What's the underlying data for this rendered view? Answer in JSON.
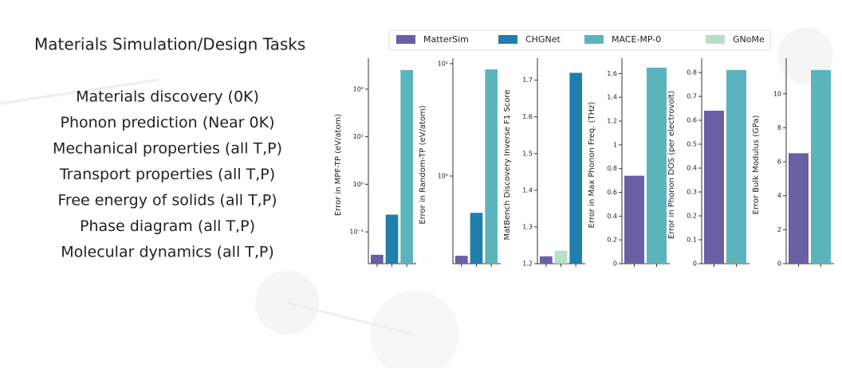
{
  "slide": {
    "title": "Materials Simulation/Design Tasks",
    "items": [
      "Materials discovery (0K)",
      "Phonon prediction (Near 0K)",
      "Mechanical properties (all T,P)",
      "Transport properties (all T,P)",
      "Free energy of solids (all T,P)",
      "Phase diagram (all T,P)",
      "Molecular dynamics (all T,P)"
    ]
  },
  "legend_loc": "upper center",
  "chart_data": [
    {
      "type": "bar",
      "ylabel": "Error in MPF-TP (eV/atom)",
      "log": true,
      "ylim": [
        0.0215,
        447
      ],
      "yticks": [
        {
          "value": 0.1,
          "label": "10⁻¹"
        },
        {
          "value": 1,
          "label": "10⁰"
        },
        {
          "value": 10,
          "label": "10¹"
        },
        {
          "value": 100,
          "label": "10²"
        }
      ],
      "series": [
        {
          "name": "MatterSim",
          "color": "#6a5fa3",
          "values": [
            0.033
          ]
        },
        {
          "name": "CHGNet",
          "color": "#1f7fab",
          "values": [
            0.23
          ]
        },
        {
          "name": "MACE-MP-0",
          "color": "#5bb4bb",
          "values": [
            251
          ]
        }
      ]
    },
    {
      "type": "bar",
      "ylabel": "Error in Random-TP (eV/atom)",
      "log": true,
      "ylim": [
        0.166,
        11.2
      ],
      "yticks": [
        {
          "value": 1,
          "label": "10⁰"
        },
        {
          "value": 10,
          "label": "10¹"
        }
      ],
      "series": [
        {
          "name": "MatterSim",
          "color": "#6a5fa3",
          "values": [
            0.195
          ]
        },
        {
          "name": "CHGNet",
          "color": "#1f7fab",
          "values": [
            0.47
          ]
        },
        {
          "name": "MACE-MP-0",
          "color": "#5bb4bb",
          "values": [
            8.9
          ]
        }
      ]
    },
    {
      "type": "bar",
      "ylabel": "MatBench Discovery Inverse F1 Score",
      "log": false,
      "ylim": [
        1.2,
        1.76
      ],
      "yticks": [
        1.2,
        1.3,
        1.4,
        1.5,
        1.6,
        1.7
      ],
      "series": [
        {
          "name": "MatterSim",
          "color": "#6a5fa3",
          "values": [
            1.22
          ]
        },
        {
          "name": "GNoMe",
          "color": "#b7dfc6",
          "values": [
            1.235
          ]
        },
        {
          "name": "CHGNet",
          "color": "#1f7fab",
          "values": [
            1.72
          ]
        }
      ]
    },
    {
      "type": "bar",
      "ylabel": "Error in Max Phonon Freq. (THz)",
      "log": false,
      "ylim": [
        0,
        1.73
      ],
      "yticks": [
        0.0,
        0.2,
        0.4,
        0.6,
        0.8,
        1.0,
        1.2,
        1.4,
        1.6
      ],
      "series": [
        {
          "name": "MatterSim",
          "color": "#6a5fa3",
          "values": [
            0.74
          ]
        },
        {
          "name": "MACE-MP-0",
          "color": "#5bb4bb",
          "values": [
            1.65
          ]
        }
      ]
    },
    {
      "type": "bar",
      "ylabel": "Error in Phonon DOS (per electrovolt)",
      "log": false,
      "ylim": [
        0,
        0.86
      ],
      "yticks": [
        0.0,
        0.1,
        0.2,
        0.3,
        0.4,
        0.5,
        0.6,
        0.7,
        0.8
      ],
      "series": [
        {
          "name": "MatterSim",
          "color": "#6a5fa3",
          "values": [
            0.64
          ]
        },
        {
          "name": "MACE-MP-0",
          "color": "#5bb4bb",
          "values": [
            0.81
          ]
        }
      ]
    },
    {
      "type": "bar",
      "ylabel": "Error Bulk Modulus (GPa)",
      "log": false,
      "ylim": [
        0,
        12.1
      ],
      "yticks": [
        0,
        2,
        4,
        6,
        8,
        10
      ],
      "series": [
        {
          "name": "MatterSim",
          "color": "#6a5fa3",
          "values": [
            6.5
          ]
        },
        {
          "name": "MACE-MP-0",
          "color": "#5bb4bb",
          "values": [
            11.4
          ]
        }
      ]
    }
  ]
}
